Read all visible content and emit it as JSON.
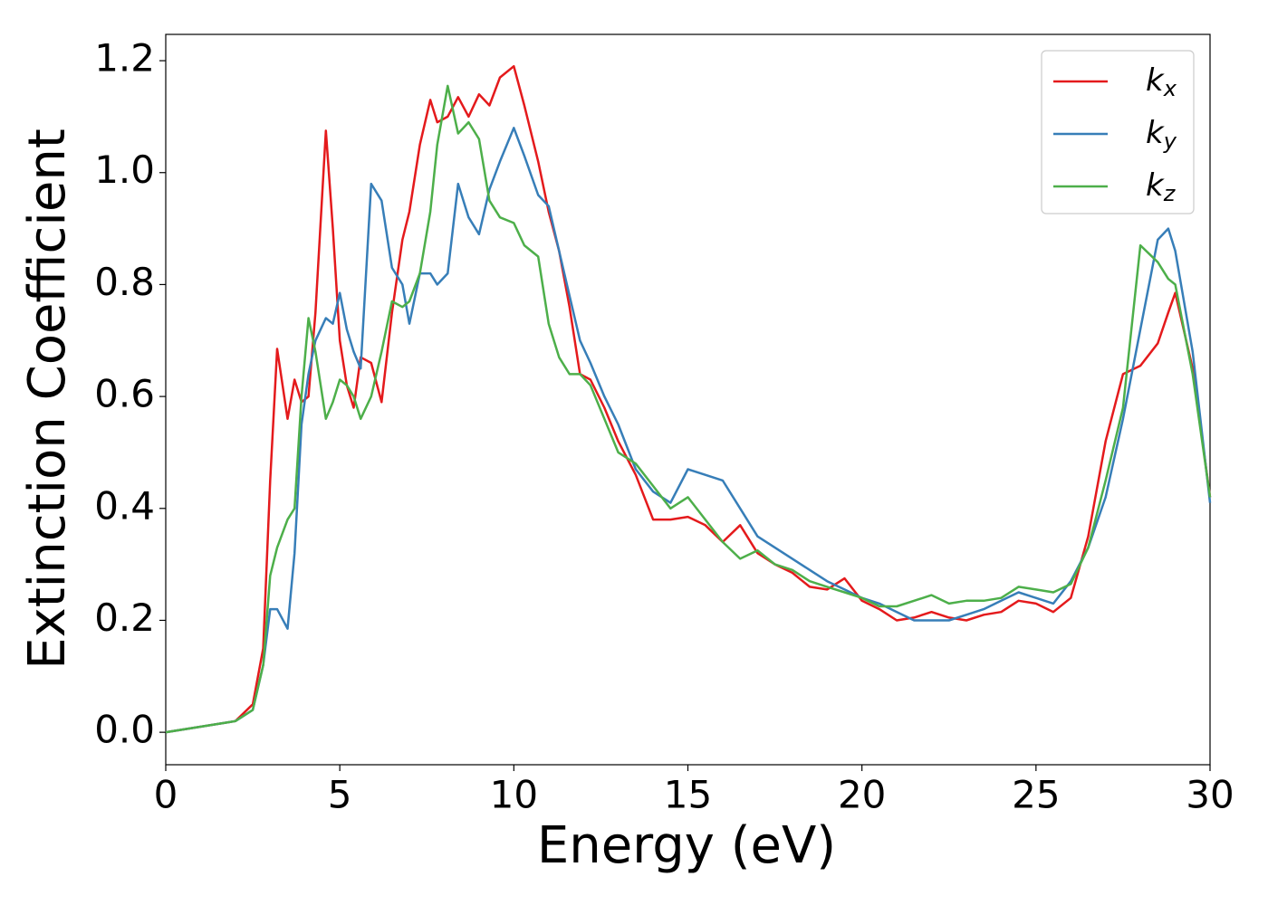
{
  "chart_data": {
    "type": "line",
    "xlabel": "Energy (eV)",
    "ylabel": "Extinction Coefficient",
    "x": [
      0,
      2,
      2.5,
      2.8,
      3.0,
      3.2,
      3.5,
      3.7,
      3.9,
      4.1,
      4.3,
      4.6,
      4.8,
      5.0,
      5.2,
      5.4,
      5.6,
      5.9,
      6.2,
      6.5,
      6.8,
      7.0,
      7.3,
      7.6,
      7.8,
      8.1,
      8.4,
      8.7,
      9.0,
      9.3,
      9.6,
      10.0,
      10.3,
      10.7,
      11.0,
      11.3,
      11.6,
      11.9,
      12.2,
      12.6,
      13,
      13.5,
      14,
      14.5,
      15,
      15.5,
      16,
      16.5,
      17,
      17.5,
      18,
      18.5,
      19,
      19.5,
      20,
      20.5,
      21,
      21.5,
      22,
      22.5,
      23,
      23.5,
      24,
      24.5,
      25,
      25.5,
      26,
      26.5,
      27,
      27.5,
      28,
      28.5,
      28.8,
      29,
      29.5,
      30
    ],
    "series": [
      {
        "name": "kx",
        "color": "#e41a1c",
        "values": [
          0,
          0.02,
          0.05,
          0.15,
          0.45,
          0.685,
          0.56,
          0.63,
          0.59,
          0.6,
          0.75,
          1.075,
          0.9,
          0.7,
          0.62,
          0.58,
          0.67,
          0.66,
          0.59,
          0.75,
          0.88,
          0.93,
          1.05,
          1.13,
          1.09,
          1.1,
          1.135,
          1.1,
          1.14,
          1.12,
          1.17,
          1.19,
          1.12,
          1.02,
          0.93,
          0.86,
          0.76,
          0.64,
          0.63,
          0.58,
          0.52,
          0.46,
          0.38,
          0.38,
          0.385,
          0.37,
          0.34,
          0.37,
          0.32,
          0.3,
          0.285,
          0.26,
          0.255,
          0.275,
          0.235,
          0.22,
          0.2,
          0.205,
          0.215,
          0.205,
          0.2,
          0.21,
          0.215,
          0.235,
          0.23,
          0.215,
          0.24,
          0.35,
          0.52,
          0.64,
          0.655,
          0.695,
          0.75,
          0.785,
          0.65,
          0.42
        ]
      },
      {
        "name": "ky",
        "color": "#377eb8",
        "values": [
          0,
          0.02,
          0.04,
          0.12,
          0.22,
          0.22,
          0.185,
          0.32,
          0.55,
          0.64,
          0.7,
          0.74,
          0.73,
          0.785,
          0.72,
          0.68,
          0.65,
          0.98,
          0.95,
          0.83,
          0.8,
          0.73,
          0.82,
          0.82,
          0.8,
          0.82,
          0.98,
          0.92,
          0.89,
          0.97,
          1.02,
          1.08,
          1.03,
          0.96,
          0.94,
          0.86,
          0.78,
          0.7,
          0.66,
          0.6,
          0.55,
          0.47,
          0.43,
          0.41,
          0.47,
          0.46,
          0.45,
          0.4,
          0.35,
          0.33,
          0.31,
          0.29,
          0.27,
          0.255,
          0.24,
          0.23,
          0.215,
          0.2,
          0.2,
          0.2,
          0.21,
          0.22,
          0.235,
          0.25,
          0.24,
          0.23,
          0.27,
          0.33,
          0.42,
          0.56,
          0.72,
          0.88,
          0.9,
          0.86,
          0.68,
          0.41
        ]
      },
      {
        "name": "kz",
        "color": "#4daf4a",
        "values": [
          0,
          0.02,
          0.04,
          0.12,
          0.28,
          0.33,
          0.38,
          0.4,
          0.6,
          0.74,
          0.68,
          0.56,
          0.59,
          0.63,
          0.62,
          0.6,
          0.56,
          0.6,
          0.68,
          0.77,
          0.76,
          0.77,
          0.82,
          0.93,
          1.05,
          1.155,
          1.07,
          1.09,
          1.06,
          0.95,
          0.92,
          0.91,
          0.87,
          0.85,
          0.73,
          0.67,
          0.64,
          0.64,
          0.62,
          0.56,
          0.5,
          0.48,
          0.44,
          0.4,
          0.42,
          0.38,
          0.34,
          0.31,
          0.325,
          0.3,
          0.29,
          0.27,
          0.26,
          0.25,
          0.24,
          0.225,
          0.225,
          0.235,
          0.245,
          0.23,
          0.235,
          0.235,
          0.24,
          0.26,
          0.255,
          0.25,
          0.265,
          0.33,
          0.45,
          0.58,
          0.87,
          0.84,
          0.81,
          0.8,
          0.64,
          0.42
        ]
      }
    ],
    "xlim": [
      0,
      30
    ],
    "xticks": [
      0,
      5,
      10,
      15,
      20,
      25,
      30
    ],
    "ylim": [
      -0.058,
      1.247
    ],
    "yticks": [
      {
        "value": 0,
        "label": "0.0"
      },
      0.2,
      0.4,
      0.6,
      0.8,
      {
        "value": 1,
        "label": "1.0"
      },
      1.2
    ],
    "grid": false,
    "legend": "upper right"
  }
}
